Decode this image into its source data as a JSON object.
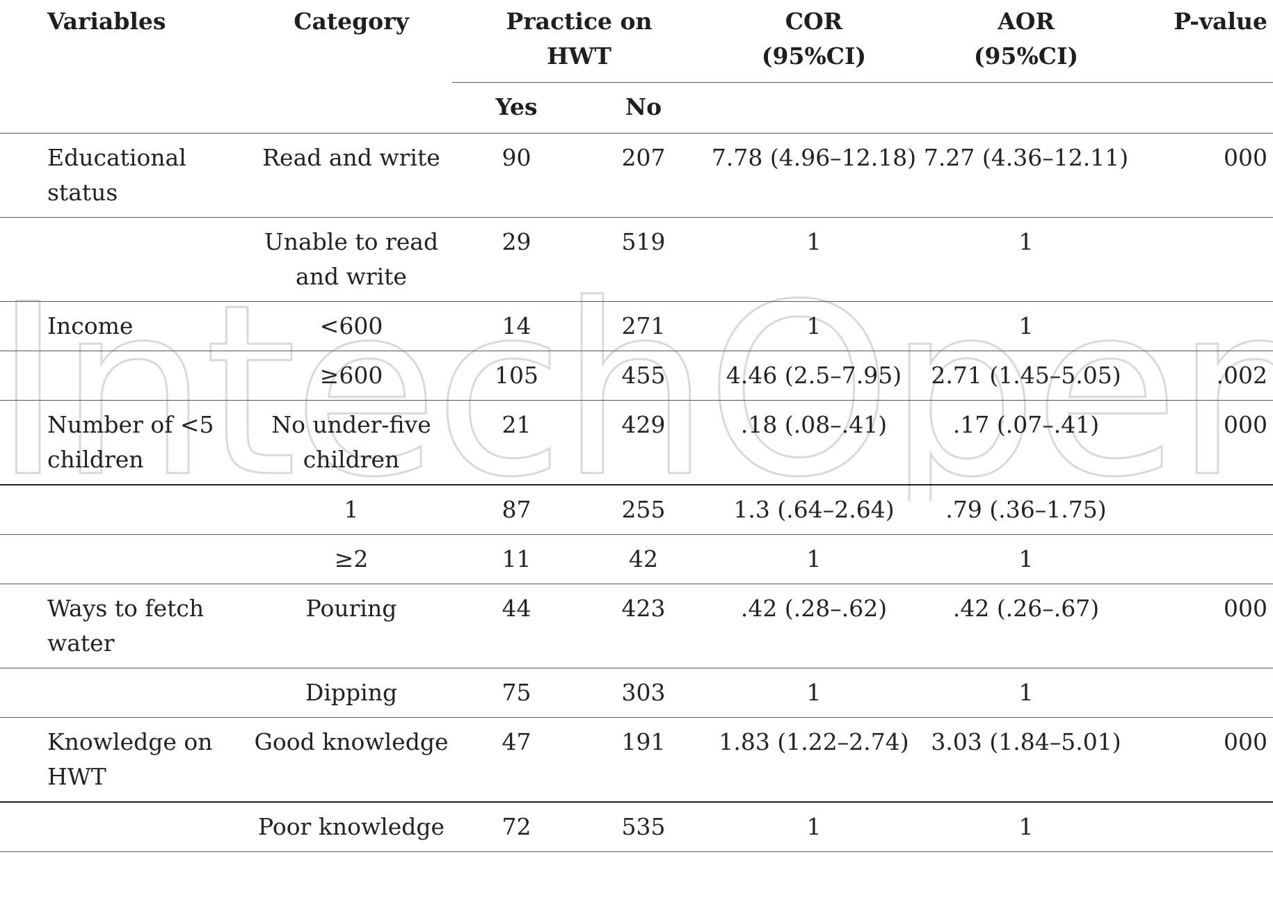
{
  "header": {
    "variables": "Variables",
    "category": "Category",
    "practice_line1": "Practice on",
    "practice_line2": "HWT",
    "cor_line1": "COR",
    "cor_line2": "(95%CI)",
    "aor_line1": "AOR",
    "aor_line2": "(95%CI)",
    "pvalue": "P-value",
    "yes": "Yes",
    "no": "No"
  },
  "rows": [
    {
      "variable": "Educational status",
      "category": "Read and write",
      "yes": "90",
      "no": "207",
      "cor": "7.78 (4.96–12.18)",
      "aor": "7.27 (4.36–12.11)",
      "p": "000"
    },
    {
      "variable": "",
      "category": "Unable to read and write",
      "yes": "29",
      "no": "519",
      "cor": "1",
      "aor": "1",
      "p": ""
    },
    {
      "variable": "Income",
      "category": "<600",
      "yes": "14",
      "no": "271",
      "cor": "1",
      "aor": "1",
      "p": ""
    },
    {
      "variable": "",
      "category": "≥600",
      "yes": "105",
      "no": "455",
      "cor": "4.46 (2.5–7.95)",
      "aor": "2.71 (1.45–5.05)",
      "p": ".002"
    },
    {
      "variable": "Number of <5 children",
      "category": "No under-five children",
      "yes": "21",
      "no": "429",
      "cor": ".18 (.08–.41)",
      "aor": ".17 (.07–.41)",
      "p": "000"
    },
    {
      "variable": "",
      "category": "1",
      "yes": "87",
      "no": "255",
      "cor": "1.3 (.64–2.64)",
      "aor": ".79 (.36–1.75)",
      "p": ""
    },
    {
      "variable": "",
      "category": "≥2",
      "yes": "11",
      "no": "42",
      "cor": "1",
      "aor": "1",
      "p": ""
    },
    {
      "variable": "Ways to fetch water",
      "category": "Pouring",
      "yes": "44",
      "no": "423",
      "cor": ".42 (.28–.62)",
      "aor": ".42 (.26–.67)",
      "p": "000"
    },
    {
      "variable": "",
      "category": "Dipping",
      "yes": "75",
      "no": "303",
      "cor": "1",
      "aor": "1",
      "p": ""
    },
    {
      "variable": "Knowledge on HWT",
      "category": "Good knowledge",
      "yes": "47",
      "no": "191",
      "cor": "1.83 (1.22–2.74)",
      "aor": "3.03 (1.84–5.01)",
      "p": "000"
    },
    {
      "variable": "",
      "category": "Poor knowledge",
      "yes": "72",
      "no": "535",
      "cor": "1",
      "aor": "1",
      "p": ""
    }
  ]
}
